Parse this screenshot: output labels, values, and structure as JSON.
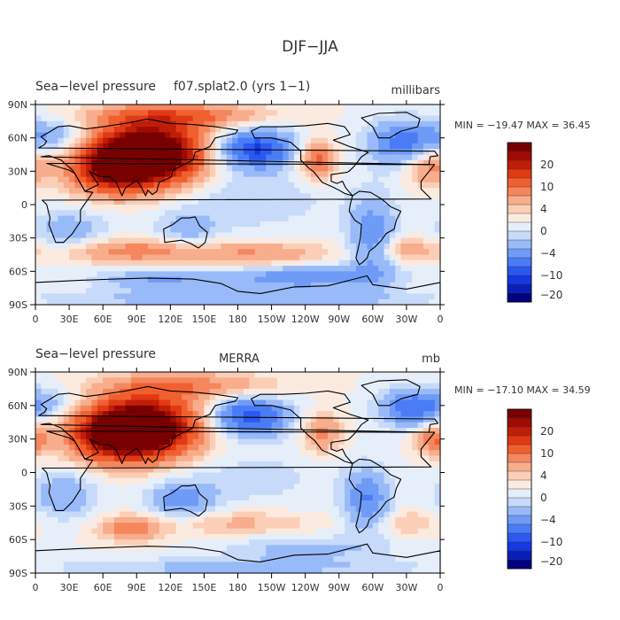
{
  "title": "DJF−JJA",
  "chart_data": [
    {
      "type": "heatmap",
      "title_left": "Sea−level pressure",
      "title_mid": "f07.splat2.0 (yrs 1−1)",
      "units": "millibars",
      "stats": "MIN = −19.47  MAX =   36.45",
      "xlabel_ticks": [
        "0",
        "30E",
        "60E",
        "90E",
        "120E",
        "150E",
        "180",
        "150W",
        "120W",
        "90W",
        "60W",
        "30W",
        "0"
      ],
      "ylabel_ticks": [
        "90N",
        "60N",
        "30N",
        "0",
        "30S",
        "60S",
        "90S"
      ],
      "xlim": [
        0,
        360
      ],
      "ylim": [
        -90,
        90
      ],
      "colorbar_labels": [
        "20",
        "10",
        "4",
        "0",
        "−4",
        "−10",
        "−20"
      ],
      "anomalies": [
        {
          "lon": 100,
          "lat": 45,
          "value": 34,
          "spread_lon": 35,
          "spread_lat": 20
        },
        {
          "lon": 65,
          "lat": 30,
          "value": 14,
          "spread_lon": 25,
          "spread_lat": 15
        },
        {
          "lon": 350,
          "lat": 35,
          "value": 10,
          "spread_lon": 15,
          "spread_lat": 12
        },
        {
          "lon": 250,
          "lat": 40,
          "value": 12,
          "spread_lon": 12,
          "spread_lat": 12
        },
        {
          "lon": 130,
          "lat": 80,
          "value": 10,
          "spread_lon": 50,
          "spread_lat": 8
        },
        {
          "lon": 195,
          "lat": 50,
          "value": -18,
          "spread_lon": 25,
          "spread_lat": 12
        },
        {
          "lon": 330,
          "lat": 55,
          "value": -12,
          "spread_lon": 25,
          "spread_lat": 15
        },
        {
          "lon": 20,
          "lat": 62,
          "value": -6,
          "spread_lon": 20,
          "spread_lat": 10
        },
        {
          "lon": 30,
          "lat": -25,
          "value": -6,
          "spread_lon": 25,
          "spread_lat": 15
        },
        {
          "lon": 135,
          "lat": -25,
          "value": -5,
          "spread_lon": 20,
          "spread_lat": 12
        },
        {
          "lon": 300,
          "lat": -30,
          "value": -10,
          "spread_lon": 15,
          "spread_lat": 25
        },
        {
          "lon": 180,
          "lat": 5,
          "value": -4,
          "spread_lon": 60,
          "spread_lat": 20
        },
        {
          "lon": 85,
          "lat": -42,
          "value": 9,
          "spread_lon": 50,
          "spread_lat": 8
        },
        {
          "lon": 200,
          "lat": -45,
          "value": 7,
          "spread_lon": 45,
          "spread_lat": 8
        },
        {
          "lon": 330,
          "lat": -40,
          "value": 6,
          "spread_lon": 20,
          "spread_lat": 8
        },
        {
          "lon": 240,
          "lat": -65,
          "value": -10,
          "spread_lon": 50,
          "spread_lat": 8
        },
        {
          "lon": 110,
          "lat": -67,
          "value": -7,
          "spread_lon": 40,
          "spread_lat": 7
        },
        {
          "lon": 180,
          "lat": -85,
          "value": -6,
          "spread_lon": 120,
          "spread_lat": 6
        }
      ]
    },
    {
      "type": "heatmap",
      "title_left": "Sea−level pressure",
      "title_mid": "MERRA",
      "units": "mb",
      "stats": "MIN = −17.10  MAX =   34.59",
      "xlabel_ticks": [
        "0",
        "30E",
        "60E",
        "90E",
        "120E",
        "150E",
        "180",
        "150W",
        "120W",
        "90W",
        "60W",
        "30W",
        "0"
      ],
      "ylabel_ticks": [
        "90N",
        "60N",
        "30N",
        "0",
        "30S",
        "60S",
        "90S"
      ],
      "xlim": [
        0,
        360
      ],
      "ylim": [
        -90,
        90
      ],
      "colorbar_labels": [
        "20",
        "10",
        "4",
        "0",
        "−4",
        "−10",
        "−20"
      ],
      "anomalies": [
        {
          "lon": 95,
          "lat": 40,
          "value": 32,
          "spread_lon": 35,
          "spread_lat": 20
        },
        {
          "lon": 65,
          "lat": 32,
          "value": 12,
          "spread_lon": 25,
          "spread_lat": 15
        },
        {
          "lon": 355,
          "lat": 30,
          "value": 10,
          "spread_lon": 12,
          "spread_lat": 10
        },
        {
          "lon": 255,
          "lat": 35,
          "value": 9,
          "spread_lon": 12,
          "spread_lat": 12
        },
        {
          "lon": 140,
          "lat": 78,
          "value": 8,
          "spread_lon": 50,
          "spread_lat": 8
        },
        {
          "lon": 190,
          "lat": 50,
          "value": -16,
          "spread_lon": 25,
          "spread_lat": 12
        },
        {
          "lon": 335,
          "lat": 58,
          "value": -13,
          "spread_lon": 20,
          "spread_lat": 12
        },
        {
          "lon": 15,
          "lat": 62,
          "value": -5,
          "spread_lon": 20,
          "spread_lat": 10
        },
        {
          "lon": 25,
          "lat": -20,
          "value": -7,
          "spread_lon": 20,
          "spread_lat": 15
        },
        {
          "lon": 130,
          "lat": -25,
          "value": -8,
          "spread_lon": 20,
          "spread_lat": 12
        },
        {
          "lon": 295,
          "lat": -25,
          "value": -10,
          "spread_lon": 15,
          "spread_lat": 20
        },
        {
          "lon": 180,
          "lat": -5,
          "value": -3,
          "spread_lon": 60,
          "spread_lat": 20
        },
        {
          "lon": 85,
          "lat": -50,
          "value": 9,
          "spread_lon": 20,
          "spread_lat": 8
        },
        {
          "lon": 180,
          "lat": -45,
          "value": 5,
          "spread_lon": 45,
          "spread_lat": 8
        },
        {
          "lon": 330,
          "lat": -45,
          "value": 4,
          "spread_lon": 20,
          "spread_lat": 8
        },
        {
          "lon": 240,
          "lat": -68,
          "value": -5,
          "spread_lon": 50,
          "spread_lat": 8
        },
        {
          "lon": 180,
          "lat": -85,
          "value": -5,
          "spread_lon": 120,
          "spread_lat": 6
        }
      ]
    }
  ],
  "colorscale": {
    "levels": [
      -22,
      -20,
      -17,
      -14,
      -10,
      -7,
      -4,
      -2,
      0,
      2,
      4,
      7,
      10,
      14,
      17,
      20,
      22
    ],
    "colors": [
      "#000080",
      "#0a1fb8",
      "#1538e0",
      "#2a58f0",
      "#4a7cf5",
      "#6f9bf7",
      "#99baf8",
      "#c7dafa",
      "#e6eefa",
      "#fbeae0",
      "#fbcfb7",
      "#f8ad8d",
      "#f5865d",
      "#f0602f",
      "#e03a14",
      "#c01e08",
      "#a00a04",
      "#780000"
    ]
  }
}
